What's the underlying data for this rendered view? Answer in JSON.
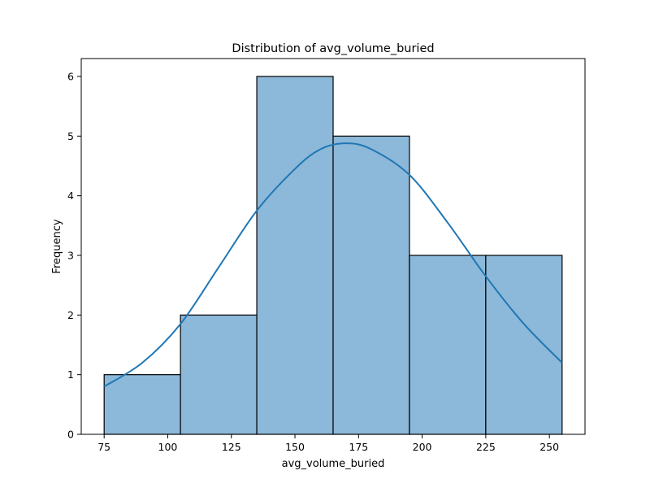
{
  "chart_data": {
    "type": "histogram",
    "title": "Distribution of avg_volume_buried",
    "xlabel": "avg_volume_buried",
    "ylabel": "Frequency",
    "bins": [
      {
        "start": 75,
        "end": 105,
        "count": 1
      },
      {
        "start": 105,
        "end": 135,
        "count": 2
      },
      {
        "start": 135,
        "end": 165,
        "count": 6
      },
      {
        "start": 165,
        "end": 195,
        "count": 5
      },
      {
        "start": 195,
        "end": 225,
        "count": 3
      },
      {
        "start": 225,
        "end": 255,
        "count": 3
      }
    ],
    "kde": {
      "x": [
        75,
        90,
        105,
        120,
        135,
        150,
        160,
        170,
        180,
        195,
        210,
        225,
        240,
        255
      ],
      "y": [
        0.8,
        1.2,
        1.85,
        2.8,
        3.75,
        4.45,
        4.78,
        4.88,
        4.78,
        4.35,
        3.55,
        2.65,
        1.85,
        1.2
      ]
    },
    "x_ticks": [
      75,
      100,
      125,
      150,
      175,
      200,
      225,
      250
    ],
    "y_ticks": [
      0,
      1,
      2,
      3,
      4,
      5,
      6
    ],
    "xlim": [
      66,
      264
    ],
    "ylim": [
      0,
      6.3
    ],
    "bar_fill": "#8cb8d9",
    "bar_edge": "#000000",
    "kde_color": "#1f77b4",
    "grid": false
  }
}
